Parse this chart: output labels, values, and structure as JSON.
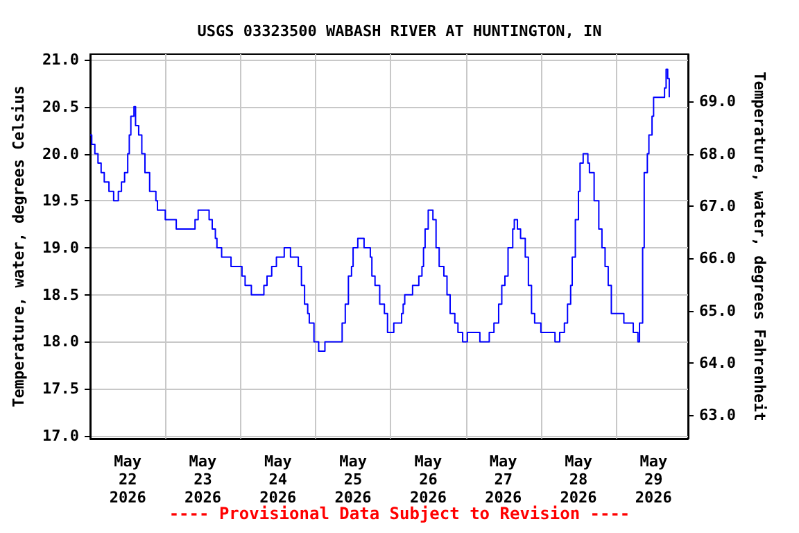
{
  "chart_data": {
    "type": "step",
    "title": "USGS 03323500 WABASH RIVER AT HUNTINGTON, IN",
    "ylabel": "Temperature, water, degrees Celsius",
    "y2label": "Temperature, water, degrees Fahrenheit",
    "annotations": [
      "---- Provisional Data Subject to Revision ----"
    ],
    "x": [
      "2026-05-22T00:00",
      "2026-05-22T00:30",
      "2026-05-22T01:30",
      "2026-05-22T02:30",
      "2026-05-22T03:30",
      "2026-05-22T04:30",
      "2026-05-22T06:00",
      "2026-05-22T07:30",
      "2026-05-22T09:00",
      "2026-05-22T10:00",
      "2026-05-22T11:00",
      "2026-05-22T12:00",
      "2026-05-22T12:30",
      "2026-05-22T13:00",
      "2026-05-22T14:00",
      "2026-05-22T14:30",
      "2026-05-22T15:30",
      "2026-05-22T16:30",
      "2026-05-22T17:30",
      "2026-05-22T19:00",
      "2026-05-22T21:00",
      "2026-05-22T21:30",
      "2026-05-23T00:00",
      "2026-05-23T03:30",
      "2026-05-23T09:30",
      "2026-05-23T10:30",
      "2026-05-23T14:00",
      "2026-05-23T15:00",
      "2026-05-23T16:00",
      "2026-05-23T16:30",
      "2026-05-23T18:00",
      "2026-05-23T21:00",
      "2026-05-24T00:30",
      "2026-05-24T01:30",
      "2026-05-24T03:30",
      "2026-05-24T07:30",
      "2026-05-24T08:30",
      "2026-05-24T10:00",
      "2026-05-24T11:30",
      "2026-05-24T14:00",
      "2026-05-24T16:00",
      "2026-05-24T18:30",
      "2026-05-24T19:30",
      "2026-05-24T20:30",
      "2026-05-24T21:30",
      "2026-05-24T22:00",
      "2026-05-24T23:30",
      "2026-05-25T01:00",
      "2026-05-25T03:00",
      "2026-05-25T08:30",
      "2026-05-25T09:30",
      "2026-05-25T10:30",
      "2026-05-25T11:30",
      "2026-05-25T12:00",
      "2026-05-25T13:30",
      "2026-05-25T15:30",
      "2026-05-25T17:30",
      "2026-05-25T18:00",
      "2026-05-25T19:00",
      "2026-05-25T20:30",
      "2026-05-25T22:00",
      "2026-05-25T23:00",
      "2026-05-26T01:00",
      "2026-05-26T03:30",
      "2026-05-26T04:00",
      "2026-05-26T04:30",
      "2026-05-26T07:00",
      "2026-05-26T09:00",
      "2026-05-26T10:00",
      "2026-05-26T10:30",
      "2026-05-26T11:00",
      "2026-05-26T12:00",
      "2026-05-26T13:30",
      "2026-05-26T14:30",
      "2026-05-26T15:30",
      "2026-05-26T17:00",
      "2026-05-26T18:00",
      "2026-05-26T19:00",
      "2026-05-26T20:30",
      "2026-05-26T21:30",
      "2026-05-26T23:00",
      "2026-05-27T00:30",
      "2026-05-27T04:30",
      "2026-05-27T07:30",
      "2026-05-27T09:00",
      "2026-05-27T10:30",
      "2026-05-27T11:30",
      "2026-05-27T12:30",
      "2026-05-27T13:30",
      "2026-05-27T15:00",
      "2026-05-27T15:30",
      "2026-05-27T16:30",
      "2026-05-27T17:30",
      "2026-05-27T19:00",
      "2026-05-27T20:00",
      "2026-05-27T21:00",
      "2026-05-27T22:00",
      "2026-05-28T00:00",
      "2026-05-28T04:30",
      "2026-05-28T06:00",
      "2026-05-28T07:30",
      "2026-05-28T08:30",
      "2026-05-28T09:30",
      "2026-05-28T10:00",
      "2026-05-28T11:00",
      "2026-05-28T12:00",
      "2026-05-28T12:30",
      "2026-05-28T13:30",
      "2026-05-28T15:00",
      "2026-05-28T15:30",
      "2026-05-28T17:00",
      "2026-05-28T18:30",
      "2026-05-28T19:30",
      "2026-05-28T20:30",
      "2026-05-28T21:30",
      "2026-05-28T22:30",
      "2026-05-29T02:30",
      "2026-05-29T05:30",
      "2026-05-29T07:00",
      "2026-05-29T07:30",
      "2026-05-29T08:30",
      "2026-05-29T09:00",
      "2026-05-29T10:00",
      "2026-05-29T10:30",
      "2026-05-29T11:30",
      "2026-05-29T12:00",
      "2026-05-29T15:30",
      "2026-05-29T16:00",
      "2026-05-29T16:30",
      "2026-05-29T17:00"
    ],
    "series": [
      {
        "color": "#0000ff",
        "values": [
          20.2,
          20.1,
          20.0,
          19.9,
          19.8,
          19.7,
          19.6,
          19.5,
          19.6,
          19.7,
          19.8,
          20.0,
          20.2,
          20.4,
          20.5,
          20.3,
          20.2,
          20.0,
          19.8,
          19.6,
          19.5,
          19.4,
          19.3,
          19.2,
          19.3,
          19.4,
          19.3,
          19.2,
          19.1,
          19.0,
          18.9,
          18.8,
          18.7,
          18.6,
          18.5,
          18.6,
          18.7,
          18.8,
          18.9,
          19.0,
          18.9,
          18.8,
          18.6,
          18.4,
          18.3,
          18.2,
          18.0,
          17.9,
          18.0,
          18.2,
          18.4,
          18.7,
          18.8,
          19.0,
          19.1,
          19.0,
          18.9,
          18.7,
          18.6,
          18.4,
          18.3,
          18.1,
          18.2,
          18.3,
          18.4,
          18.5,
          18.6,
          18.7,
          18.8,
          19.0,
          19.2,
          19.4,
          19.3,
          19.0,
          18.8,
          18.7,
          18.5,
          18.3,
          18.2,
          18.1,
          18.0,
          18.1,
          18.0,
          18.1,
          18.2,
          18.4,
          18.6,
          18.7,
          19.0,
          19.2,
          19.3,
          19.2,
          19.1,
          18.9,
          18.6,
          18.3,
          18.2,
          18.1,
          18.0,
          18.1,
          18.2,
          18.4,
          18.6,
          18.9,
          19.3,
          19.6,
          19.9,
          20.0,
          19.9,
          19.8,
          19.5,
          19.2,
          19.0,
          18.8,
          18.6,
          18.3,
          18.2,
          18.1,
          18.0,
          18.2,
          19.0,
          19.8,
          20.0,
          20.2,
          20.4,
          20.6,
          20.7,
          20.9,
          20.8,
          20.6
        ]
      }
    ],
    "xlim": [
      "2026-05-22T00:00",
      "2026-05-29T23:00"
    ],
    "xticks": [
      {
        "value": "2026-05-22T12:00",
        "label": "May\n22\n2026"
      },
      {
        "value": "2026-05-23T12:00",
        "label": "May\n23\n2026"
      },
      {
        "value": "2026-05-24T12:00",
        "label": "May\n24\n2026"
      },
      {
        "value": "2026-05-25T12:00",
        "label": "May\n25\n2026"
      },
      {
        "value": "2026-05-26T12:00",
        "label": "May\n26\n2026"
      },
      {
        "value": "2026-05-27T12:00",
        "label": "May\n27\n2026"
      },
      {
        "value": "2026-05-28T12:00",
        "label": "May\n28\n2026"
      },
      {
        "value": "2026-05-29T12:00",
        "label": "May\n29\n2026"
      },
      {
        "value": "2026-05-23T00:00",
        "label": null
      },
      {
        "value": "2026-05-24T00:00",
        "label": null
      },
      {
        "value": "2026-05-25T00:00",
        "label": null
      },
      {
        "value": "2026-05-26T00:00",
        "label": null
      },
      {
        "value": "2026-05-27T00:00",
        "label": null
      },
      {
        "value": "2026-05-28T00:00",
        "label": null
      },
      {
        "value": "2026-05-29T00:00",
        "label": null
      }
    ],
    "ylim": [
      16.97,
      21.06
    ],
    "yticks": [
      {
        "value": 17,
        "label": "17.0"
      },
      {
        "value": 17.5,
        "label": "17.5"
      },
      {
        "value": 18,
        "label": "18.0"
      },
      {
        "value": 18.5,
        "label": "18.5"
      },
      {
        "value": 19,
        "label": "19.0"
      },
      {
        "value": 19.5,
        "label": "19.5"
      },
      {
        "value": 20,
        "label": "20.0"
      },
      {
        "value": 20.5,
        "label": "20.5"
      },
      {
        "value": 21,
        "label": "21.0"
      }
    ],
    "y2lim": [
      62.55,
      69.91
    ],
    "y2ticks": [
      {
        "value": 63,
        "label": "63.0"
      },
      {
        "value": 64,
        "label": "64.0"
      },
      {
        "value": 65,
        "label": "65.0"
      },
      {
        "value": 66,
        "label": "66.0"
      },
      {
        "value": 67,
        "label": "67.0"
      },
      {
        "value": 68,
        "label": "68.0"
      },
      {
        "value": 69,
        "label": "69.0"
      }
    ],
    "grid": true
  }
}
